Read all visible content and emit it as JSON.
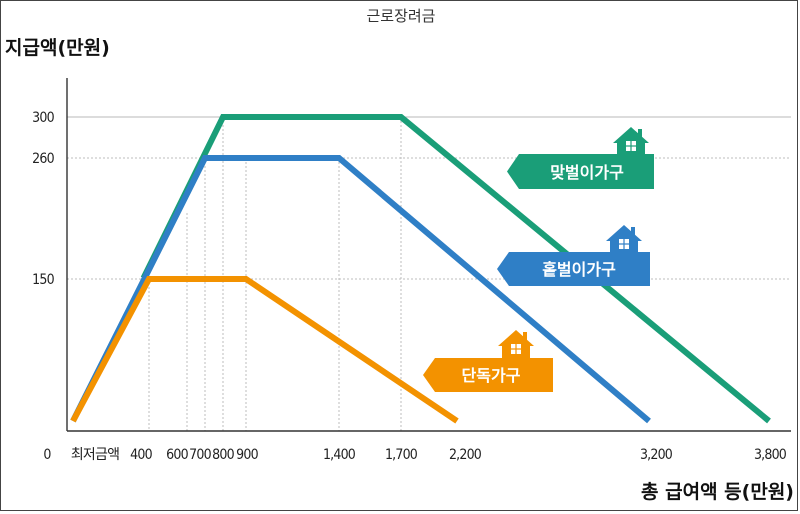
{
  "chart_data": {
    "type": "line",
    "title": "근로장려금",
    "ylabel": "지급액(만원)",
    "xlabel": "총 급여액 등(만원)",
    "x_tick_labels": [
      "0",
      "최저금액",
      "400",
      "600",
      "700",
      "800",
      "900",
      "1,400",
      "1,700",
      "2,200",
      "3,200",
      "3,800"
    ],
    "y_tick_labels": [
      "300",
      "260",
      "150"
    ],
    "y_ticks": [
      300,
      260,
      150
    ],
    "reference_lines_y": [
      300,
      260,
      150
    ],
    "reference_lines_x": [
      400,
      600,
      700,
      800,
      900,
      1400,
      1700
    ],
    "series": [
      {
        "name": "맞벌이가구",
        "color": "#1a9e78",
        "points": [
          [
            100,
            0
          ],
          [
            800,
            300
          ],
          [
            1700,
            300
          ],
          [
            3800,
            0
          ]
        ]
      },
      {
        "name": "홑벌이가구",
        "color": "#2f7fc6",
        "points": [
          [
            100,
            0
          ],
          [
            700,
            260
          ],
          [
            1400,
            260
          ],
          [
            3200,
            0
          ]
        ]
      },
      {
        "name": "단독가구",
        "color": "#f39200",
        "points": [
          [
            100,
            0
          ],
          [
            400,
            150
          ],
          [
            900,
            150
          ],
          [
            2200,
            0
          ]
        ]
      }
    ],
    "legend_icon": "house-icon"
  }
}
